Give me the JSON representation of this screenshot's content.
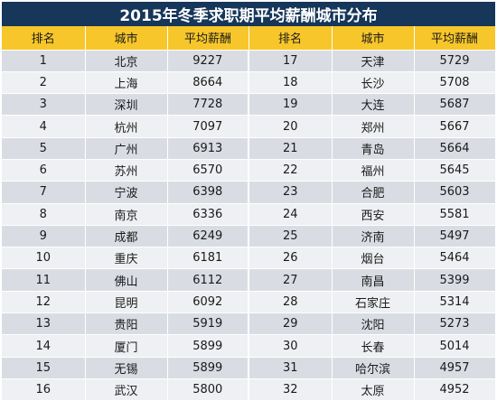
{
  "title": "2015年冬季求职期平均薪酬城市分布",
  "headers": [
    "排名",
    "城市",
    "平均薪酬",
    "排名",
    "城市",
    "平均薪酬"
  ],
  "rows": [
    [
      "1",
      "北京",
      "9227",
      "17",
      "天津",
      "5729"
    ],
    [
      "2",
      "上海",
      "8664",
      "18",
      "长沙",
      "5708"
    ],
    [
      "3",
      "深圳",
      "7728",
      "19",
      "大连",
      "5687"
    ],
    [
      "4",
      "杭州",
      "7097",
      "20",
      "郑州",
      "5667"
    ],
    [
      "5",
      "广州",
      "6913",
      "21",
      "青岛",
      "5664"
    ],
    [
      "6",
      "苏州",
      "6570",
      "22",
      "福州",
      "5645"
    ],
    [
      "7",
      "宁波",
      "6398",
      "23",
      "合肥",
      "5603"
    ],
    [
      "8",
      "南京",
      "6336",
      "24",
      "西安",
      "5581"
    ],
    [
      "9",
      "成都",
      "6249",
      "25",
      "济南",
      "5497"
    ],
    [
      "10",
      "重庆",
      "6181",
      "26",
      "烟台",
      "5464"
    ],
    [
      "11",
      "佛山",
      "6112",
      "27",
      "南昌",
      "5399"
    ],
    [
      "12",
      "昆明",
      "6092",
      "28",
      "石家庄",
      "5314"
    ],
    [
      "13",
      "贵阳",
      "5919",
      "29",
      "沈阳",
      "5273"
    ],
    [
      "14",
      "厦门",
      "5899",
      "30",
      "长春",
      "5014"
    ],
    [
      "15",
      "无锡",
      "5899",
      "31",
      "哈尔滨",
      "4957"
    ],
    [
      "16",
      "武汉",
      "5800",
      "32",
      "太原",
      "4952"
    ]
  ],
  "colors": {
    "title_background": "#16365a",
    "header_background": "#f7c62a",
    "row_odd": "#d9dde3",
    "row_even": "#eef0f3"
  }
}
